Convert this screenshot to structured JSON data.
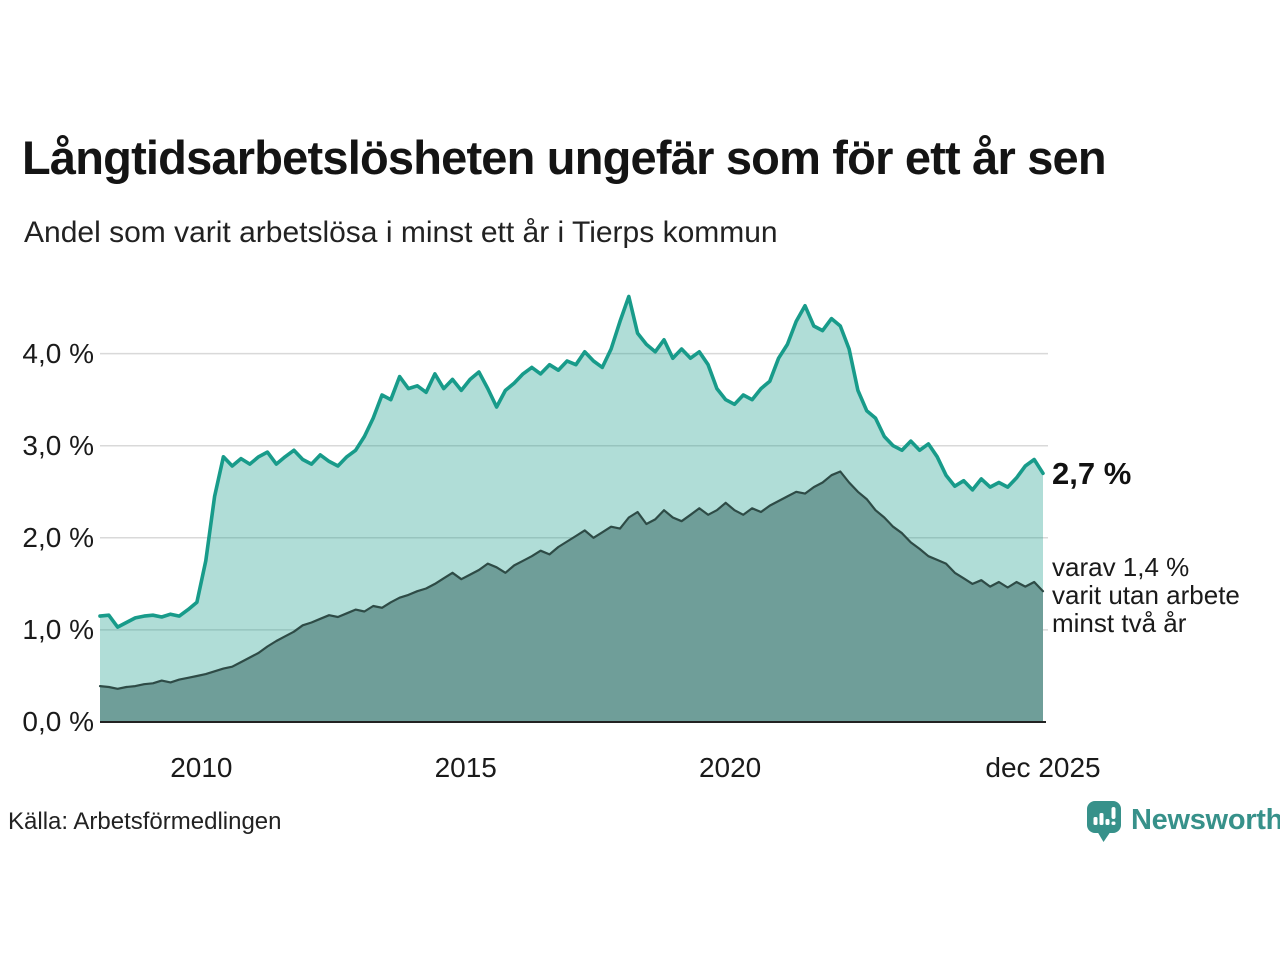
{
  "header": {
    "title": "Långtidsarbetslösheten ungefär som för ett år sen",
    "subtitle": "Andel som varit arbetslösa i minst ett år i Tierps kommun"
  },
  "chart_data": {
    "type": "area",
    "title": "Långtidsarbetslösheten ungefär som för ett år sen",
    "subtitle": "Andel som varit arbetslösa i minst ett år i Tierps kommun",
    "unit": "%",
    "x_start": 2008.083,
    "x_step": 0.166667,
    "x_domain": [
      2008.083,
      2025.917
    ],
    "ylim": [
      0,
      4.65
    ],
    "grid": "horizontal",
    "y_axis": {
      "ticks": [
        {
          "label": "4,0 %",
          "value": 4
        },
        {
          "label": "3,0 %",
          "value": 3
        },
        {
          "label": "2,0 %",
          "value": 2
        },
        {
          "label": "1,0 %",
          "value": 1
        },
        {
          "label": "0,0 %",
          "value": 0
        }
      ]
    },
    "x_axis": {
      "ticks": [
        {
          "label": "2010",
          "value": 2010
        },
        {
          "label": "2015",
          "value": 2015
        },
        {
          "label": "2020",
          "value": 2020
        },
        {
          "label": "dec 2025",
          "value": 2025.917
        }
      ]
    },
    "series": [
      {
        "name": "Arbetslösa minst ett år",
        "latest_label": "2,7 %",
        "latest_value": 2.7,
        "values": [
          1.15,
          1.16,
          1.03,
          1.08,
          1.13,
          1.15,
          1.16,
          1.14,
          1.17,
          1.15,
          1.22,
          1.3,
          1.75,
          2.45,
          2.88,
          2.78,
          2.86,
          2.8,
          2.88,
          2.93,
          2.8,
          2.88,
          2.95,
          2.85,
          2.8,
          2.9,
          2.83,
          2.78,
          2.88,
          2.95,
          3.1,
          3.3,
          3.55,
          3.5,
          3.75,
          3.62,
          3.65,
          3.58,
          3.78,
          3.62,
          3.72,
          3.6,
          3.72,
          3.8,
          3.62,
          3.42,
          3.6,
          3.68,
          3.78,
          3.85,
          3.78,
          3.88,
          3.82,
          3.92,
          3.88,
          4.02,
          3.92,
          3.85,
          4.05,
          4.35,
          4.62,
          4.22,
          4.1,
          4.02,
          4.15,
          3.95,
          4.05,
          3.95,
          4.02,
          3.88,
          3.62,
          3.5,
          3.45,
          3.55,
          3.5,
          3.62,
          3.7,
          3.95,
          4.1,
          4.35,
          4.52,
          4.3,
          4.25,
          4.38,
          4.3,
          4.05,
          3.6,
          3.38,
          3.3,
          3.1,
          3.0,
          2.95,
          3.05,
          2.95,
          3.02,
          2.88,
          2.68,
          2.56,
          2.62,
          2.52,
          2.64,
          2.55,
          2.6,
          2.55,
          2.65,
          2.78,
          2.85,
          2.7
        ]
      },
      {
        "name": "varav arbetslösa minst två år",
        "latest_label": "varav 1,4 %",
        "latest_value": 1.4,
        "values": [
          0.39,
          0.38,
          0.36,
          0.38,
          0.39,
          0.41,
          0.42,
          0.45,
          0.43,
          0.46,
          0.48,
          0.5,
          0.52,
          0.55,
          0.58,
          0.6,
          0.65,
          0.7,
          0.75,
          0.82,
          0.88,
          0.93,
          0.98,
          1.05,
          1.08,
          1.12,
          1.16,
          1.14,
          1.18,
          1.22,
          1.2,
          1.26,
          1.24,
          1.3,
          1.35,
          1.38,
          1.42,
          1.45,
          1.5,
          1.56,
          1.62,
          1.55,
          1.6,
          1.65,
          1.72,
          1.68,
          1.62,
          1.7,
          1.75,
          1.8,
          1.86,
          1.82,
          1.9,
          1.96,
          2.02,
          2.08,
          2.0,
          2.06,
          2.12,
          2.1,
          2.22,
          2.28,
          2.15,
          2.2,
          2.3,
          2.22,
          2.18,
          2.25,
          2.32,
          2.25,
          2.3,
          2.38,
          2.3,
          2.25,
          2.32,
          2.28,
          2.35,
          2.4,
          2.45,
          2.5,
          2.48,
          2.55,
          2.6,
          2.68,
          2.72,
          2.6,
          2.5,
          2.42,
          2.3,
          2.22,
          2.12,
          2.05,
          1.95,
          1.88,
          1.8,
          1.76,
          1.72,
          1.62,
          1.56,
          1.5,
          1.54,
          1.47,
          1.52,
          1.46,
          1.52,
          1.47,
          1.52,
          1.42
        ]
      }
    ],
    "annotations": {
      "latest_total": "2,7 %",
      "two_year_line1": "varav 1,4 %",
      "two_year_line2": "varit utan arbete",
      "two_year_line3": "minst två år"
    },
    "legend_position": "right-annotations"
  },
  "footer": {
    "source": "Källa: Arbetsförmedlingen",
    "brand": "Newsworthy"
  },
  "colors": {
    "total_line": "#189b8a",
    "total_fill": "#189b8a",
    "total_fill_opacity": 0.34,
    "two_year_fill": "#6f9e99",
    "two_year_line": "#2e4b46",
    "gridline": "#d9d9d9",
    "axis_line": "#222222",
    "text": "#1a1a1a",
    "brand_teal": "#37918a"
  }
}
